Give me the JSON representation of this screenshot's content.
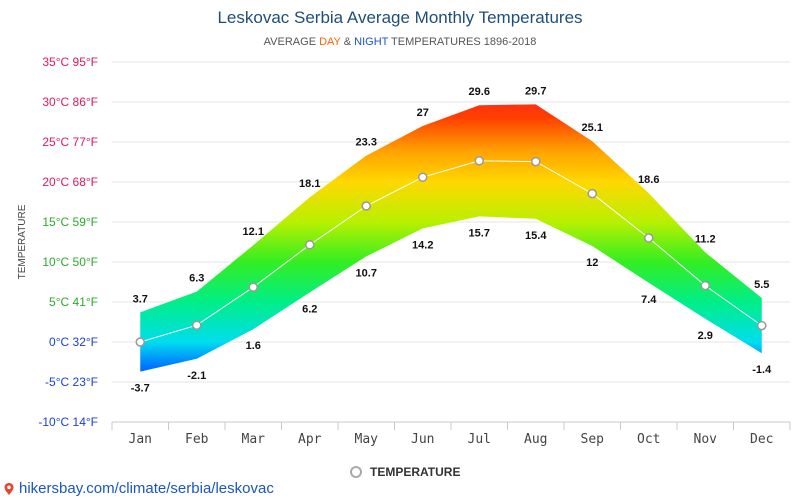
{
  "header": {
    "title": "Leskovac Serbia Average Monthly Temperatures",
    "subtitle_prefix": "AVERAGE ",
    "subtitle_day": "DAY",
    "subtitle_amp": " & ",
    "subtitle_night": "NIGHT",
    "subtitle_suffix": " TEMPERATURES 1896-2018"
  },
  "legend": {
    "label": "TEMPERATURE",
    "marker_color": "#aaaaaa"
  },
  "footer": {
    "link_text": "hikersbay.com/climate/serbia/leskovac",
    "icon": "map-pin-icon"
  },
  "colors": {
    "title": "#1f4e79",
    "day": "#ff6600",
    "night": "#1a4fd6",
    "link": "#1a55c4"
  },
  "chart_data": {
    "type": "area",
    "title": "Leskovac Serbia Average Monthly Temperatures",
    "subtitle": "AVERAGE DAY & NIGHT TEMPERATURES 1896-2018",
    "ylabel": "TEMPERATURE",
    "xlabel": "",
    "categories": [
      "Jan",
      "Feb",
      "Mar",
      "Apr",
      "May",
      "Jun",
      "Jul",
      "Aug",
      "Sep",
      "Oct",
      "Nov",
      "Dec"
    ],
    "series": [
      {
        "name": "DAY",
        "values": [
          3.7,
          6.3,
          12.1,
          18.1,
          23.3,
          27,
          29.6,
          29.7,
          25.1,
          18.6,
          11.2,
          5.5
        ]
      },
      {
        "name": "NIGHT",
        "values": [
          -3.7,
          -2.1,
          1.6,
          6.2,
          10.7,
          14.2,
          15.7,
          15.4,
          12,
          7.4,
          2.9,
          -1.4
        ]
      },
      {
        "name": "TEMPERATURE",
        "values": [
          0,
          2.1,
          6.85,
          12.15,
          17,
          20.6,
          22.65,
          22.55,
          18.55,
          13,
          7.05,
          2.05
        ]
      }
    ],
    "ylim": [
      -10,
      35
    ],
    "y_ticks": [
      {
        "value": 35,
        "label": "35°C 95°F",
        "color": "#e0195a"
      },
      {
        "value": 30,
        "label": "30°C 86°F",
        "color": "#e0195a"
      },
      {
        "value": 25,
        "label": "25°C 77°F",
        "color": "#e0195a"
      },
      {
        "value": 20,
        "label": "20°C 68°F",
        "color": "#e0195a"
      },
      {
        "value": 15,
        "label": "15°C 59°F",
        "color": "#2aaa2a"
      },
      {
        "value": 10,
        "label": "10°C 50°F",
        "color": "#2aaa2a"
      },
      {
        "value": 5,
        "label": "5°C 41°F",
        "color": "#2aaa2a"
      },
      {
        "value": 0,
        "label": "0°C 32°F",
        "color": "#1a3fd6"
      },
      {
        "value": -5,
        "label": "-5°C 23°F",
        "color": "#1a3fd6"
      },
      {
        "value": -10,
        "label": "-10°C 14°F",
        "color": "#1a3fd6"
      }
    ],
    "grid": true,
    "legend_position": "bottom-center",
    "gradient_stops": [
      {
        "temp": 35,
        "color": "#ff0044"
      },
      {
        "temp": 28,
        "color": "#ff4000"
      },
      {
        "temp": 24,
        "color": "#ffa000"
      },
      {
        "temp": 20,
        "color": "#ffd800"
      },
      {
        "temp": 15,
        "color": "#b8f000"
      },
      {
        "temp": 10,
        "color": "#33ee22"
      },
      {
        "temp": 5,
        "color": "#00ee88"
      },
      {
        "temp": 0,
        "color": "#00ddee"
      },
      {
        "temp": -3,
        "color": "#0077ff"
      },
      {
        "temp": -10,
        "color": "#0000cc"
      }
    ]
  }
}
